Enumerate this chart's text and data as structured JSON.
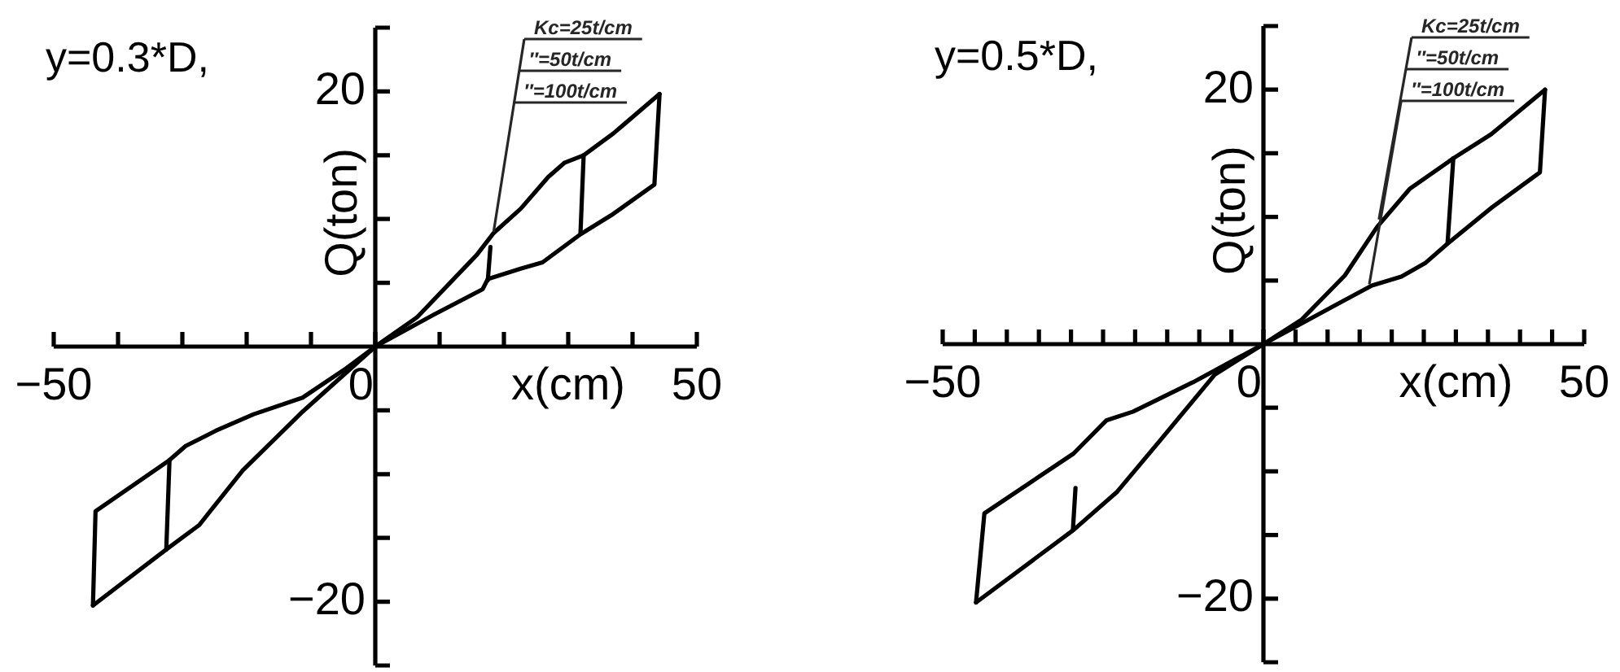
{
  "chart_data": [
    {
      "type": "line",
      "title": "y=0.3*D,",
      "xlabel": "x(cm)",
      "ylabel": "Q(ton)",
      "xlim": [
        -50,
        50
      ],
      "ylim": [
        -25,
        25
      ],
      "xticks": [
        {
          "value": -50,
          "label": "−50"
        },
        {
          "value": -40,
          "label": null
        },
        {
          "value": -30,
          "label": null
        },
        {
          "value": -20,
          "label": null
        },
        {
          "value": -10,
          "label": null
        },
        {
          "value": 0,
          "label": "0"
        },
        {
          "value": 10,
          "label": null
        },
        {
          "value": 20,
          "label": null
        },
        {
          "value": 30,
          "label": null
        },
        {
          "value": 40,
          "label": null
        },
        50
      ],
      "yticks": [
        {
          "value": -25,
          "label": null
        },
        {
          "value": -20,
          "label": "−20"
        },
        {
          "value": -15,
          "label": null
        },
        {
          "value": -10,
          "label": null
        },
        {
          "value": -5,
          "label": null
        },
        {
          "value": 5,
          "label": null
        },
        {
          "value": 10,
          "label": null
        },
        {
          "value": 15,
          "label": null
        },
        20,
        {
          "value": 25,
          "label": null
        }
      ],
      "marker": "none",
      "series": [
        {
          "color": "#000000",
          "x": [
            -43.9,
            -43.5,
            -32,
            -29.5,
            -24.8,
            -18.9,
            -11.3,
            -4.5,
            0,
            6.5,
            15.8,
            18.4,
            22.6,
            26.9,
            29.4,
            32.4,
            37,
            44.2
          ],
          "values": [
            -20.3,
            -12.9,
            -8.9,
            -7.8,
            -6.6,
            -5.3,
            -4,
            -1.7,
            0,
            2.3,
            7.2,
            8.9,
            10.8,
            13.3,
            14.4,
            15,
            16.7,
            19.8
          ]
        },
        {
          "color": "#000000",
          "x": [
            44.2,
            43.4,
            37,
            31.9,
            26,
            22.6,
            17.5,
            16.7,
            9.1,
            0,
            -11.3,
            -20.6,
            -27.4,
            -32.5,
            -43.9
          ],
          "values": [
            19.8,
            12.7,
            10.4,
            8.8,
            6.6,
            6.1,
            5.3,
            4.5,
            2.5,
            0,
            -5.1,
            -9.7,
            -14,
            -15.9,
            -20.3
          ]
        },
        {
          "color": "#000000",
          "x": [
            32.4,
            31.9
          ],
          "values": [
            15,
            8.8
          ]
        },
        {
          "color": "#000000",
          "x": [
            17.9,
            17.5
          ],
          "values": [
            7.8,
            5.2
          ]
        },
        {
          "color": "#000000",
          "x": [
            -32,
            -32.5
          ],
          "values": [
            -8.9,
            -15.9
          ]
        }
      ],
      "annotations": [
        {
          "text": "Kc=25t/cm",
          "x": 18.4,
          "y": 9
        },
        "″=50t/cm",
        "″=100t/cm"
      ]
    },
    {
      "type": "line",
      "title": "y=0.5*D,",
      "xlabel": "x(cm)",
      "ylabel": "Q(ton)",
      "xlim": [
        -50,
        50
      ],
      "ylim": [
        -25,
        25
      ],
      "xticks": [
        {
          "value": -50,
          "label": "−50"
        },
        {
          "value": -45,
          "label": null
        },
        {
          "value": -40,
          "label": null
        },
        {
          "value": -35,
          "label": null
        },
        {
          "value": -30,
          "label": null
        },
        {
          "value": -25,
          "label": null
        },
        {
          "value": -20,
          "label": null
        },
        {
          "value": -15,
          "label": null
        },
        {
          "value": -10,
          "label": null
        },
        {
          "value": -5,
          "label": null
        },
        {
          "value": 0,
          "label": "0"
        },
        {
          "value": 5,
          "label": null
        },
        {
          "value": 10,
          "label": null
        },
        {
          "value": 15,
          "label": null
        },
        {
          "value": 20,
          "label": null
        },
        {
          "value": 25,
          "label": null
        },
        {
          "value": 30,
          "label": null
        },
        {
          "value": 35,
          "label": null
        },
        {
          "value": 40,
          "label": null
        },
        {
          "value": 45,
          "label": null
        },
        50
      ],
      "yticks": [
        {
          "value": -25,
          "label": null
        },
        {
          "value": -20,
          "label": "−20"
        },
        {
          "value": -15,
          "label": null
        },
        {
          "value": -10,
          "label": null
        },
        {
          "value": -5,
          "label": null
        },
        {
          "value": 5,
          "label": null
        },
        {
          "value": 10,
          "label": null
        },
        {
          "value": 15,
          "label": null
        },
        20,
        {
          "value": 25,
          "label": null
        }
      ],
      "marker": "none",
      "series": [
        {
          "color": "#000000",
          "x": [
            -44.8,
            -43.5,
            -29.6,
            -24.5,
            -20.3,
            -11,
            0,
            5.9,
            12.7,
            17.7,
            22.8,
            29.6,
            35.5,
            43.9
          ],
          "values": [
            -20.3,
            -13.3,
            -8.6,
            -6,
            -5.3,
            -3,
            0,
            1.9,
            5.4,
            9.2,
            12.2,
            14.6,
            16.5,
            20
          ]
        },
        {
          "color": "#000000",
          "x": [
            43.9,
            43.1,
            35.5,
            28.7,
            25.3,
            21.5,
            16.9,
            11,
            0,
            -7.6,
            -16,
            -22.8,
            -29.6,
            -44.8
          ],
          "values": [
            20,
            13.5,
            10.7,
            7.9,
            6.4,
            5.3,
            4.6,
            3,
            0,
            -2.4,
            -7.5,
            -11.6,
            -14.6,
            -20.3
          ]
        },
        {
          "color": "#000000",
          "x": [
            29.6,
            28.7
          ],
          "values": [
            14.6,
            7.9
          ]
        },
        {
          "color": "#000000",
          "x": [
            -29.3,
            -29.7
          ],
          "values": [
            -11.3,
            -14.6
          ]
        }
      ],
      "annotations": [
        {
          "text": "Kc=25t/cm",
          "x": 18,
          "y": 9.8
        },
        "″=50t/cm",
        {
          "text": "″=100t/cm",
          "x": 16.5,
          "y": 4.7
        }
      ]
    }
  ]
}
